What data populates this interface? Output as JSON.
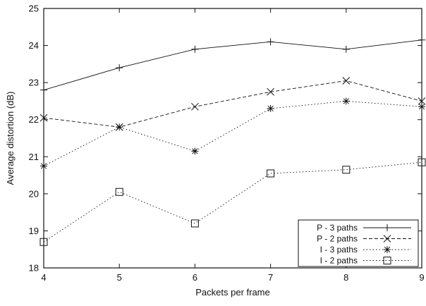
{
  "chart_data": {
    "type": "line",
    "title": "",
    "xlabel": "Packets per frame",
    "ylabel": "Average distortion (dB)",
    "x": [
      4,
      5,
      6,
      7,
      8,
      9
    ],
    "xlim": [
      4,
      9
    ],
    "ylim": [
      18,
      25
    ],
    "xticks": [
      "4",
      "5",
      "6",
      "7",
      "8",
      "9"
    ],
    "yticks": [
      "18",
      "19",
      "20",
      "21",
      "22",
      "23",
      "24",
      "25"
    ],
    "grid": false,
    "legend_position": "bottom-right",
    "series": [
      {
        "name": "P - 3 paths",
        "values": [
          22.8,
          23.4,
          23.9,
          24.1,
          23.9,
          24.15
        ],
        "marker": "plus",
        "dash": "solid"
      },
      {
        "name": "P - 2 paths",
        "values": [
          22.05,
          21.8,
          22.35,
          22.75,
          23.05,
          22.5
        ],
        "marker": "x",
        "dash": "dashed"
      },
      {
        "name": "I - 3 paths",
        "values": [
          20.75,
          21.8,
          21.15,
          22.3,
          22.5,
          22.35
        ],
        "marker": "star",
        "dash": "dotted"
      },
      {
        "name": "I - 2 paths",
        "values": [
          18.7,
          20.05,
          19.2,
          20.55,
          20.65,
          20.85
        ],
        "marker": "square",
        "dash": "dotted"
      }
    ]
  }
}
